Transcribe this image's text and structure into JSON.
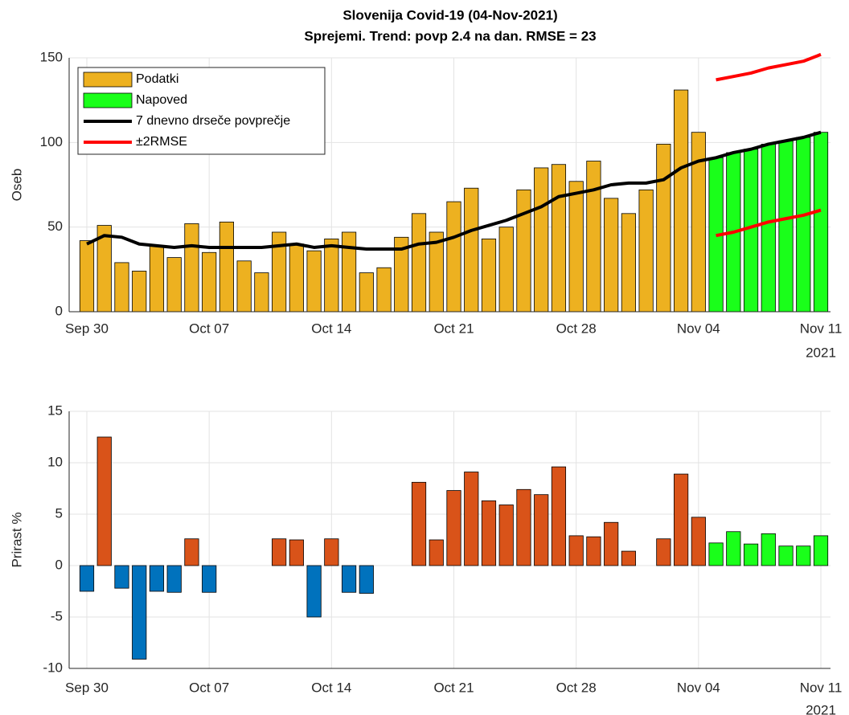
{
  "chart_data": [
    {
      "type": "bar",
      "title": "Slovenija Covid-19 (04-Nov-2021)",
      "subtitle": "Sprejemi. Trend: povp 2.4 na dan. RMSE = 23",
      "ylabel": "Oseb",
      "categories": [
        "Sep 30",
        null,
        null,
        null,
        null,
        null,
        null,
        "Oct 07",
        null,
        null,
        null,
        null,
        null,
        null,
        "Oct 14",
        null,
        null,
        null,
        null,
        null,
        null,
        "Oct 21",
        null,
        null,
        null,
        null,
        null,
        null,
        "Oct 28",
        null,
        null,
        null,
        null,
        null,
        null,
        "Nov 04",
        null,
        null,
        null,
        null,
        null,
        null,
        "Nov 11"
      ],
      "x_year": "2021",
      "ylim": [
        0,
        150
      ],
      "yticks": [
        0,
        50,
        100,
        150
      ],
      "grid": true,
      "legend": "upper left",
      "series": [
        {
          "name": "Podatki",
          "type": "bar",
          "color": "#edb120",
          "values": [
            42,
            51,
            29,
            24,
            39,
            32,
            52,
            35,
            53,
            30,
            23,
            47,
            40,
            36,
            43,
            47,
            23,
            26,
            44,
            58,
            47,
            65,
            73,
            43,
            50,
            72,
            85,
            87,
            77,
            89,
            67,
            58,
            72,
            99,
            131,
            106,
            null,
            null,
            null,
            null,
            null,
            null,
            null
          ]
        },
        {
          "name": "Napoved",
          "type": "bar",
          "color": "#1aff1a",
          "values": [
            null,
            null,
            null,
            null,
            null,
            null,
            null,
            null,
            null,
            null,
            null,
            null,
            null,
            null,
            null,
            null,
            null,
            null,
            null,
            null,
            null,
            null,
            null,
            null,
            null,
            null,
            null,
            null,
            null,
            null,
            null,
            null,
            null,
            null,
            null,
            null,
            91,
            94,
            96,
            99,
            101,
            103,
            106
          ]
        },
        {
          "name": "7 dnevno drseče povprečje",
          "type": "line",
          "color": "#000000",
          "values": [
            40,
            45,
            44,
            40,
            39,
            38,
            39,
            38,
            38,
            38,
            38,
            39,
            40,
            38,
            39,
            38,
            37,
            37,
            37,
            40,
            41,
            44,
            48,
            51,
            54,
            58,
            62,
            68,
            70,
            72,
            75,
            76,
            76,
            78,
            85,
            89,
            91,
            94,
            96,
            99,
            101,
            103,
            106
          ]
        },
        {
          "name": "±2RMSE",
          "type": "line",
          "color": "#ff0000",
          "values": [
            null,
            null,
            null,
            null,
            null,
            null,
            null,
            null,
            null,
            null,
            null,
            null,
            null,
            null,
            null,
            null,
            null,
            null,
            null,
            null,
            null,
            null,
            null,
            null,
            null,
            null,
            null,
            null,
            null,
            null,
            null,
            null,
            null,
            null,
            null,
            null,
            137,
            139,
            141,
            144,
            146,
            148,
            152
          ]
        },
        {
          "type": "line",
          "color": "#ff0000",
          "values": [
            null,
            null,
            null,
            null,
            null,
            null,
            null,
            null,
            null,
            null,
            null,
            null,
            null,
            null,
            null,
            null,
            null,
            null,
            null,
            null,
            null,
            null,
            null,
            null,
            null,
            null,
            null,
            null,
            null,
            null,
            null,
            null,
            null,
            null,
            null,
            null,
            45,
            47,
            50,
            53,
            55,
            57,
            60
          ]
        }
      ]
    },
    {
      "type": "bar",
      "ylabel": "Prirast %",
      "categories": [
        "Sep 30",
        null,
        null,
        null,
        null,
        null,
        null,
        "Oct 07",
        null,
        null,
        null,
        null,
        null,
        null,
        "Oct 14",
        null,
        null,
        null,
        null,
        null,
        null,
        "Oct 21",
        null,
        null,
        null,
        null,
        null,
        null,
        "Oct 28",
        null,
        null,
        null,
        null,
        null,
        null,
        "Nov 04",
        null,
        null,
        null,
        null,
        null,
        null,
        "Nov 11"
      ],
      "x_year": "2021",
      "ylim": [
        -10,
        15
      ],
      "yticks": [
        -10,
        -5,
        0,
        5,
        10,
        15
      ],
      "grid": true,
      "series": [
        {
          "type": "bar",
          "color": "#0072bd",
          "values": [
            -2.5,
            null,
            -2.2,
            -9.1,
            -2.5,
            -2.6,
            null,
            -2.6,
            null,
            null,
            null,
            null,
            null,
            -5.0,
            null,
            -2.6,
            -2.7,
            null,
            null,
            null,
            null,
            null,
            null,
            null,
            null,
            null,
            null,
            null,
            null,
            null,
            null,
            null,
            null,
            null,
            null,
            null,
            null,
            null,
            null,
            null,
            null,
            null,
            null
          ]
        },
        {
          "type": "bar",
          "color": "#d95319",
          "values": [
            null,
            12.5,
            null,
            null,
            null,
            null,
            2.6,
            null,
            0,
            0,
            0,
            2.6,
            2.5,
            null,
            2.6,
            null,
            null,
            0,
            0,
            8.1,
            2.5,
            7.3,
            9.1,
            6.3,
            5.9,
            7.4,
            6.9,
            9.6,
            2.9,
            2.8,
            4.2,
            1.4,
            0,
            2.6,
            8.9,
            4.7,
            null,
            null,
            null,
            null,
            null,
            null,
            null
          ]
        },
        {
          "type": "bar",
          "color": "#1aff1a",
          "values": [
            null,
            null,
            null,
            null,
            null,
            null,
            null,
            null,
            null,
            null,
            null,
            null,
            null,
            null,
            null,
            null,
            null,
            null,
            null,
            null,
            null,
            null,
            null,
            null,
            null,
            null,
            null,
            null,
            null,
            null,
            null,
            null,
            null,
            null,
            null,
            null,
            2.2,
            3.3,
            2.1,
            3.1,
            1.9,
            1.9,
            2.9
          ]
        }
      ]
    }
  ]
}
